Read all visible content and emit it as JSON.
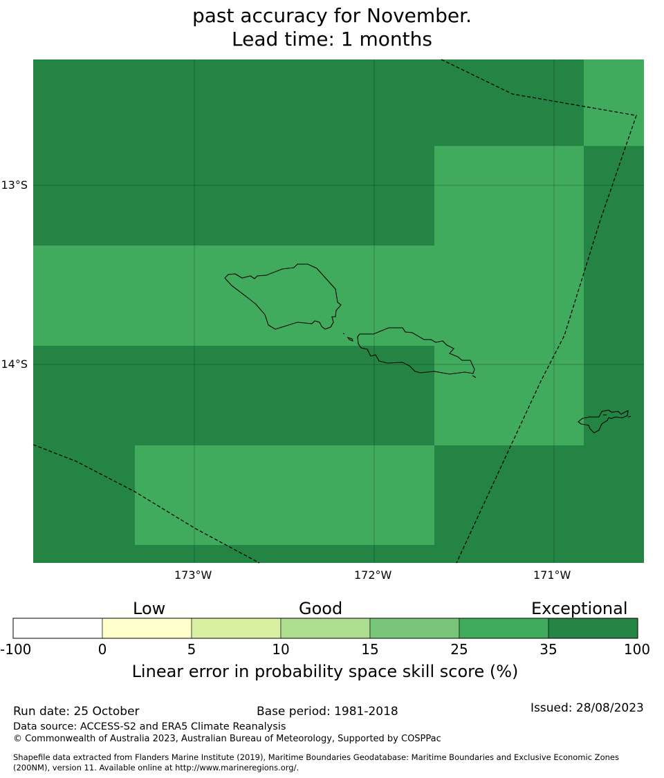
{
  "title": {
    "line1": "past accuracy for November.",
    "line2": "Lead time: 1 months"
  },
  "map": {
    "lon_labels": [
      "173°W",
      "172°W",
      "171°W"
    ],
    "lat_labels": [
      "13°S",
      "14°S"
    ],
    "colors": {
      "exceptional": "#238443",
      "band_25_35": "#41ab5d",
      "coast": "#000000"
    }
  },
  "legend": {
    "category_labels": [
      "Low",
      "Good",
      "Exceptional"
    ],
    "tick_labels": [
      "-100",
      "0",
      "5",
      "10",
      "15",
      "25",
      "35",
      "100"
    ],
    "colors": [
      "#ffffff",
      "#ffffcc",
      "#d9f0a3",
      "#addd8e",
      "#78c679",
      "#41ab5d",
      "#238443"
    ],
    "axis_label": "Linear error in probability space skill score (%)"
  },
  "footer": {
    "run_date": "Run date: 25 October",
    "base_period": "Base period: 1981-2018",
    "issued": "Issued: 28/08/2023",
    "data_source": "Data source: ACCESS-S2 and ERA5 Climate Reanalysis",
    "copyright": "© Commonwealth of Australia 2023, Australian Bureau of Meteorology, Supported by COSPPac",
    "shapefile_line1": "Shapefile data extracted from Flanders Marine Institute (2019), Maritime Boundaries Geodatabase: Maritime Boundaries and Exclusive Economic Zones",
    "shapefile_line2": "(200NM), version 11. Available online at http://www.marineregions.org/."
  }
}
